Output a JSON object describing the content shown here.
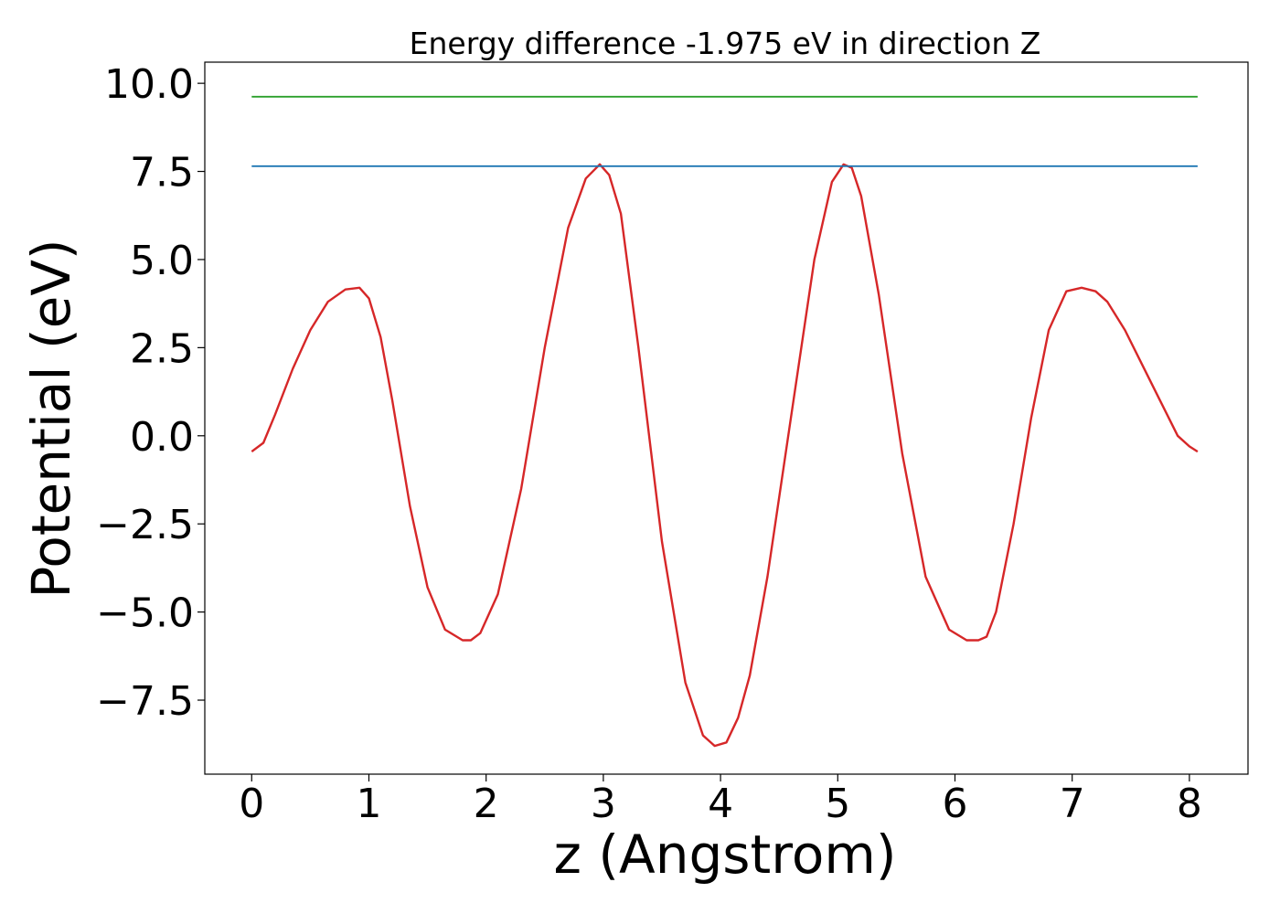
{
  "chart_data": {
    "type": "line",
    "title": "Energy difference -1.975 eV in direction Z",
    "xlabel": "z (Angstrom)",
    "ylabel": "Potential (eV)",
    "xlim": [
      -0.4,
      8.5
    ],
    "ylim": [
      -9.6,
      10.6
    ],
    "xticks": [
      0,
      1,
      2,
      3,
      4,
      5,
      6,
      7,
      8
    ],
    "xtick_labels": [
      "0",
      "1",
      "2",
      "3",
      "4",
      "5",
      "6",
      "7",
      "8"
    ],
    "yticks": [
      10.0,
      7.5,
      5.0,
      2.5,
      0.0,
      -2.5,
      -5.0,
      -7.5
    ],
    "ytick_labels": [
      "10.0",
      "7.5",
      "5.0",
      "2.5",
      "0.0",
      "−2.5",
      "−5.0",
      "−7.5"
    ],
    "grid": false,
    "series": [
      {
        "color": "#d62728",
        "x": [
          0.0,
          0.1,
          0.2,
          0.35,
          0.5,
          0.65,
          0.8,
          0.92,
          1.0,
          1.1,
          1.2,
          1.35,
          1.5,
          1.65,
          1.8,
          1.87,
          1.95,
          2.1,
          2.3,
          2.5,
          2.7,
          2.85,
          2.97,
          3.05,
          3.15,
          3.3,
          3.5,
          3.7,
          3.85,
          3.95,
          4.05,
          4.15,
          4.25,
          4.4,
          4.6,
          4.8,
          4.95,
          5.05,
          5.12,
          5.2,
          5.35,
          5.55,
          5.75,
          5.95,
          6.1,
          6.2,
          6.27,
          6.35,
          6.5,
          6.65,
          6.8,
          6.95,
          7.08,
          7.2,
          7.3,
          7.45,
          7.6,
          7.75,
          7.9,
          8.0,
          8.07
        ],
        "y": [
          -0.45,
          -0.2,
          0.6,
          1.9,
          3.0,
          3.8,
          4.15,
          4.2,
          3.9,
          2.8,
          1.0,
          -2.0,
          -4.3,
          -5.5,
          -5.8,
          -5.8,
          -5.6,
          -4.5,
          -1.5,
          2.5,
          5.9,
          7.3,
          7.7,
          7.4,
          6.3,
          2.5,
          -3.0,
          -7.0,
          -8.5,
          -8.8,
          -8.7,
          -8.0,
          -6.8,
          -4.0,
          0.5,
          5.0,
          7.2,
          7.7,
          7.6,
          6.8,
          4.0,
          -0.5,
          -4.0,
          -5.5,
          -5.8,
          -5.8,
          -5.7,
          -5.0,
          -2.5,
          0.5,
          3.0,
          4.1,
          4.2,
          4.1,
          3.8,
          3.0,
          2.0,
          1.0,
          0.0,
          -0.3,
          -0.45
        ]
      },
      {
        "color": "#1f77b4",
        "x": [
          0.0,
          8.07
        ],
        "y": [
          7.65,
          7.65
        ]
      },
      {
        "color": "#2ca02c",
        "x": [
          0.0,
          8.07
        ],
        "y": [
          9.62,
          9.62
        ]
      }
    ]
  }
}
